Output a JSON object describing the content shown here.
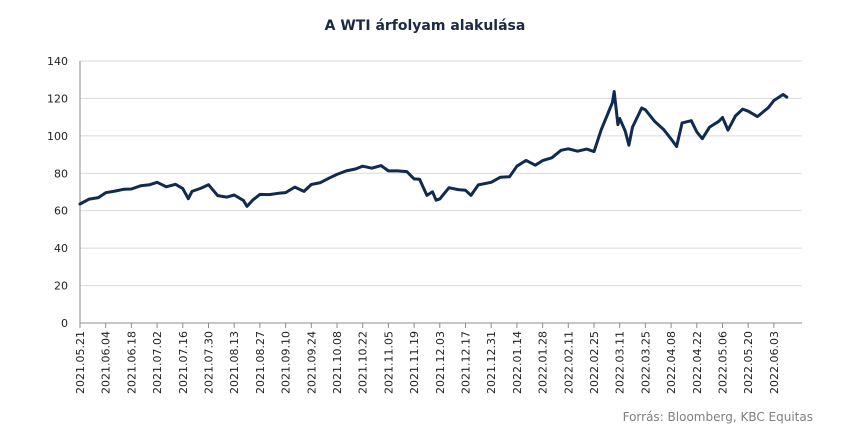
{
  "chart_data": {
    "type": "line",
    "title": "A WTI árfolyam alakulása",
    "source": "Forrás: Bloomberg,  KBC Equitas",
    "ylim": [
      0,
      140
    ],
    "yticks": [
      0,
      20,
      40,
      60,
      80,
      100,
      120,
      140
    ],
    "grid": true,
    "legend": "none",
    "line_color": "#0f2b4f",
    "categories": [
      "2021.05.21",
      "2021.06.04",
      "2021.06.18",
      "2021.07.02",
      "2021.07.16",
      "2021.07.30",
      "2021.08.13",
      "2021.08.27",
      "2021.09.10",
      "2021.09.24",
      "2021.10.08",
      "2021.10.22",
      "2021.11.05",
      "2021.11.19",
      "2021.12.03",
      "2021.12.17",
      "2021.12.31",
      "2022.01.14",
      "2022.01.28",
      "2022.02.11",
      "2022.02.25",
      "2022.03.11",
      "2022.03.25",
      "2022.04.08",
      "2022.04.22",
      "2022.05.06",
      "2022.05.20",
      "2022.06.03"
    ],
    "series": [
      {
        "x": [
          "2021.05.21",
          "2021.05.26",
          "2021.05.31",
          "2021.06.04",
          "2021.06.09",
          "2021.06.14",
          "2021.06.18",
          "2021.06.23",
          "2021.06.28",
          "2021.07.02",
          "2021.07.07",
          "2021.07.12",
          "2021.07.16",
          "2021.07.19",
          "2021.07.21",
          "2021.07.26",
          "2021.07.30",
          "2021.08.04",
          "2021.08.09",
          "2021.08.13",
          "2021.08.18",
          "2021.08.20",
          "2021.08.23",
          "2021.08.27",
          "2021.09.01",
          "2021.09.06",
          "2021.09.10",
          "2021.09.15",
          "2021.09.20",
          "2021.09.24",
          "2021.09.29",
          "2021.10.04",
          "2021.10.08",
          "2021.10.13",
          "2021.10.18",
          "2021.10.22",
          "2021.10.27",
          "2021.11.01",
          "2021.11.05",
          "2021.11.10",
          "2021.11.15",
          "2021.11.19",
          "2021.11.22",
          "2021.11.26",
          "2021.11.29",
          "2021.12.01",
          "2021.12.03",
          "2021.12.08",
          "2021.12.13",
          "2021.12.17",
          "2021.12.20",
          "2021.12.24",
          "2021.12.31",
          "2022.01.05",
          "2022.01.10",
          "2022.01.14",
          "2022.01.19",
          "2022.01.24",
          "2022.01.28",
          "2022.02.02",
          "2022.02.07",
          "2022.02.11",
          "2022.02.16",
          "2022.02.21",
          "2022.02.25",
          "2022.03.01",
          "2022.03.04",
          "2022.03.07",
          "2022.03.08",
          "2022.03.10",
          "2022.03.11",
          "2022.03.14",
          "2022.03.16",
          "2022.03.18",
          "2022.03.23",
          "2022.03.25",
          "2022.03.30",
          "2022.04.04",
          "2022.04.08",
          "2022.04.11",
          "2022.04.14",
          "2022.04.19",
          "2022.04.22",
          "2022.04.25",
          "2022.04.29",
          "2022.05.04",
          "2022.05.06",
          "2022.05.09",
          "2022.05.13",
          "2022.05.17",
          "2022.05.20",
          "2022.05.25",
          "2022.05.31",
          "2022.06.03",
          "2022.06.08",
          "2022.06.10"
        ],
        "values": [
          63.6,
          66.2,
          67.0,
          69.6,
          70.5,
          71.5,
          71.6,
          73.3,
          73.9,
          75.2,
          72.8,
          74.1,
          71.8,
          66.4,
          70.3,
          72.1,
          73.9,
          68.1,
          67.3,
          68.4,
          65.5,
          62.3,
          65.6,
          68.7,
          68.6,
          69.3,
          69.7,
          72.6,
          70.3,
          74.0,
          75.0,
          77.6,
          79.4,
          81.3,
          82.3,
          83.8,
          82.7,
          84.1,
          81.3,
          81.3,
          80.9,
          77.0,
          76.8,
          68.2,
          70.1,
          65.6,
          66.3,
          72.3,
          71.3,
          70.9,
          68.2,
          73.8,
          75.2,
          77.9,
          78.2,
          83.8,
          86.9,
          84.3,
          86.8,
          88.3,
          92.3,
          93.1,
          91.8,
          92.9,
          91.6,
          103.4,
          110.6,
          117.8,
          123.7,
          106.0,
          109.3,
          102.6,
          95.0,
          104.7,
          114.9,
          113.9,
          107.8,
          103.3,
          98.3,
          94.3,
          106.9,
          108.1,
          102.1,
          98.5,
          104.7,
          107.8,
          109.8,
          103.1,
          110.6,
          114.3,
          113.2,
          110.3,
          115.1,
          118.9,
          122.1,
          120.7
        ]
      }
    ]
  }
}
